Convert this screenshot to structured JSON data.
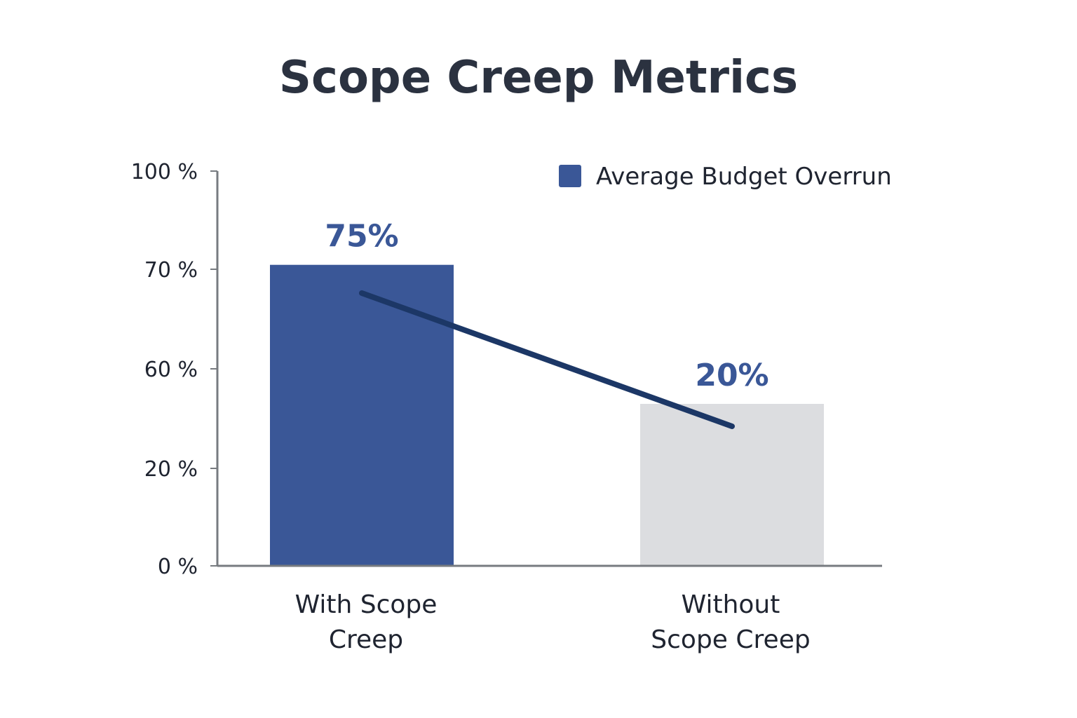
{
  "chart_data": {
    "type": "bar",
    "title": "Scope Creep Metrics",
    "categories": [
      [
        "With Scope",
        "Creep"
      ],
      [
        "Without",
        "Scope Creep"
      ]
    ],
    "series": [
      {
        "name": "Average Budget Overrun",
        "values": [
          75,
          20
        ],
        "value_labels": [
          "75%",
          "20%"
        ],
        "colors": [
          "#3a5797",
          "#dcdde0"
        ]
      }
    ],
    "trend_line": {
      "from": [
        0,
        65
      ],
      "to": [
        1,
        30
      ],
      "color": "#1c3766"
    },
    "y_ticks": [
      {
        "value": 100,
        "label": "100 %"
      },
      {
        "value": 70,
        "label": "70 %"
      },
      {
        "value": 60,
        "label": "60 %"
      },
      {
        "value": 20,
        "label": "20 %"
      },
      {
        "value": 0,
        "label": "0 %"
      }
    ],
    "legend": {
      "position": "top-right",
      "label": "Average Budget Overrun",
      "color": "#3a5797"
    },
    "grid": false,
    "colors": {
      "axis": "#777b80",
      "value_label": "#3a5797",
      "title": "#2b3240"
    }
  }
}
